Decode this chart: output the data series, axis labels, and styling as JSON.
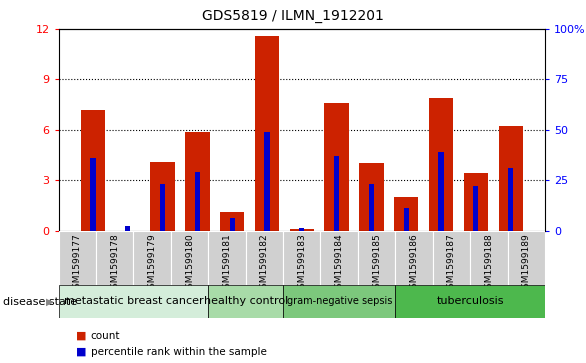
{
  "title": "GDS5819 / ILMN_1912201",
  "samples": [
    "GSM1599177",
    "GSM1599178",
    "GSM1599179",
    "GSM1599180",
    "GSM1599181",
    "GSM1599182",
    "GSM1599183",
    "GSM1599184",
    "GSM1599185",
    "GSM1599186",
    "GSM1599187",
    "GSM1599188",
    "GSM1599189"
  ],
  "count_values": [
    7.2,
    0.0,
    4.1,
    5.85,
    1.1,
    11.6,
    0.1,
    7.6,
    4.0,
    2.0,
    7.9,
    3.4,
    6.2
  ],
  "percentile_values": [
    36,
    2,
    23,
    29,
    6,
    49,
    1,
    37,
    23,
    11,
    39,
    22,
    31
  ],
  "bar_color": "#cc2200",
  "percentile_color": "#0000cc",
  "ylim_left": [
    0,
    12
  ],
  "ylim_right": [
    0,
    100
  ],
  "yticks_left": [
    0,
    3,
    6,
    9,
    12
  ],
  "yticks_right": [
    0,
    25,
    50,
    75,
    100
  ],
  "disease_groups": [
    {
      "label": "metastatic breast cancer",
      "start": 0,
      "end": 3,
      "color": "#d4edda"
    },
    {
      "label": "healthy control",
      "start": 4,
      "end": 5,
      "color": "#a8dba8"
    },
    {
      "label": "gram-negative sepsis",
      "start": 6,
      "end": 8,
      "color": "#7cc87c"
    },
    {
      "label": "tuberculosis",
      "start": 9,
      "end": 12,
      "color": "#4db84d"
    }
  ],
  "legend_count_color": "#cc2200",
  "legend_percentile_color": "#0000cc",
  "xlabel_disease": "disease state",
  "tick_bg_color": "#d0d0d0"
}
